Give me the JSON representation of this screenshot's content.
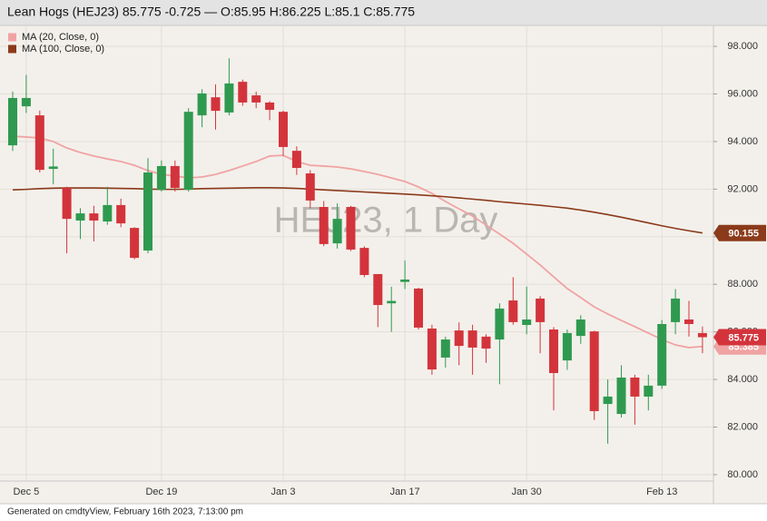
{
  "chart_data": {
    "type": "candlestick",
    "title": "Lean Hogs (HEJ23) 85.775 -0.725 — O:85.95 H:86.225 L:85.1 C:85.775",
    "watermark": "HEJ23, 1 Day",
    "footer": "Generated on cmdtyView, February 16th 2023, 7:13:00 pm",
    "categories": [
      null,
      "Dec 5",
      null,
      null,
      null,
      null,
      null,
      null,
      null,
      null,
      null,
      "Dec 19",
      null,
      null,
      null,
      null,
      null,
      null,
      null,
      null,
      "Jan 3",
      null,
      null,
      null,
      null,
      null,
      null,
      null,
      null,
      "Jan 17",
      null,
      null,
      null,
      null,
      null,
      null,
      null,
      null,
      "Jan 30",
      null,
      null,
      null,
      null,
      null,
      null,
      null,
      null,
      null,
      "Feb 13",
      null,
      null,
      null
    ],
    "open": [
      93.84,
      95.48,
      95.1,
      92.85,
      92.05,
      90.68,
      90.98,
      90.64,
      91.33,
      90.37,
      89.42,
      91.97,
      92.97,
      91.97,
      95.1,
      95.86,
      95.22,
      96.51,
      95.94,
      95.64,
      95.25,
      93.61,
      92.66,
      91.25,
      89.72,
      91.25,
      89.53,
      88.43,
      87.2,
      88.1,
      87.82,
      86.14,
      84.92,
      86.06,
      86.06,
      85.8,
      85.68,
      87.32,
      86.29,
      87.4,
      86.1,
      84.8,
      85.83,
      86.02,
      82.97,
      82.55,
      84.08,
      83.28,
      83.74,
      86.41,
      86.52,
      85.95
    ],
    "high": [
      96.1,
      96.8,
      95.3,
      93.7,
      92.1,
      91.2,
      91.3,
      92.1,
      91.6,
      90.4,
      93.3,
      93.2,
      93.2,
      95.4,
      96.2,
      96.4,
      97.5,
      96.6,
      96.1,
      95.7,
      95.3,
      93.8,
      92.8,
      91.5,
      91.4,
      91.3,
      89.6,
      88.4,
      87.9,
      89.0,
      87.85,
      86.3,
      85.8,
      86.4,
      86.3,
      85.9,
      87.2,
      88.3,
      87.9,
      87.5,
      86.2,
      86.1,
      86.7,
      86.05,
      84.0,
      84.6,
      84.2,
      84.2,
      86.5,
      87.8,
      87.3,
      86.225
    ],
    "low": [
      93.6,
      95.2,
      92.7,
      92.2,
      89.3,
      89.9,
      89.8,
      90.5,
      90.4,
      89.05,
      89.3,
      91.9,
      91.9,
      91.9,
      94.6,
      94.5,
      95.1,
      95.5,
      95.4,
      94.9,
      93.4,
      92.6,
      91.2,
      89.6,
      89.5,
      89.4,
      88.3,
      86.2,
      86.0,
      87.8,
      86.1,
      84.2,
      84.5,
      84.6,
      84.2,
      84.7,
      83.8,
      86.3,
      85.9,
      85.1,
      82.7,
      84.4,
      85.5,
      82.3,
      81.3,
      82.4,
      82.1,
      82.7,
      83.6,
      85.9,
      85.8,
      85.1
    ],
    "close": [
      95.83,
      95.83,
      92.81,
      92.95,
      90.75,
      90.98,
      90.68,
      91.33,
      90.56,
      89.11,
      92.7,
      92.97,
      92.05,
      95.25,
      96.02,
      95.29,
      96.44,
      95.64,
      95.64,
      95.33,
      93.77,
      92.89,
      91.52,
      89.69,
      90.75,
      89.46,
      88.39,
      87.13,
      87.3,
      88.2,
      86.18,
      84.42,
      85.68,
      85.41,
      85.34,
      85.3,
      86.98,
      86.41,
      86.52,
      86.41,
      84.27,
      85.95,
      86.52,
      82.67,
      83.28,
      84.08,
      83.28,
      83.74,
      86.33,
      87.4,
      86.33,
      85.775
    ],
    "up_color": "#2f9a4f",
    "down_color": "#d3343b",
    "series": [
      {
        "name": "MA (20, Close, 0)",
        "color": "#f0a3a3",
        "values": [
          94.22,
          94.19,
          94.15,
          94.0,
          93.73,
          93.54,
          93.39,
          93.27,
          93.16,
          93.0,
          92.78,
          92.62,
          92.55,
          92.47,
          92.51,
          92.62,
          92.78,
          92.97,
          93.16,
          93.39,
          93.42,
          93.16,
          93.0,
          92.97,
          92.93,
          92.85,
          92.74,
          92.62,
          92.47,
          92.32,
          92.09,
          91.82,
          91.48,
          91.17,
          90.87,
          90.49,
          90.11,
          89.72,
          89.27,
          88.81,
          88.31,
          87.82,
          87.44,
          87.05,
          86.75,
          86.48,
          86.22,
          85.95,
          85.68,
          85.45,
          85.34,
          85.385
        ]
      },
      {
        "name": "MA (100, Close, 0)",
        "color": "#8b3a1a",
        "values": [
          91.97,
          91.99,
          92.02,
          92.04,
          92.05,
          92.05,
          92.05,
          92.04,
          92.03,
          92.02,
          92.0,
          91.99,
          91.99,
          92.0,
          92.02,
          92.03,
          92.04,
          92.05,
          92.06,
          92.06,
          92.05,
          92.03,
          92.0,
          91.97,
          91.94,
          91.91,
          91.88,
          91.85,
          91.82,
          91.79,
          91.76,
          91.72,
          91.68,
          91.63,
          91.58,
          91.53,
          91.47,
          91.42,
          91.37,
          91.32,
          91.26,
          91.2,
          91.12,
          91.03,
          90.93,
          90.82,
          90.7,
          90.58,
          90.46,
          90.35,
          90.25,
          90.155
        ]
      }
    ],
    "ylim": [
      79.73,
      98.88
    ],
    "yticks": [
      {
        "value": 80,
        "label": "80.000"
      },
      {
        "value": 82,
        "label": "82.000"
      },
      {
        "value": 84,
        "label": "84.000"
      },
      {
        "value": 86,
        "label": "86.000"
      },
      {
        "value": 88,
        "label": "88.000"
      },
      {
        "value": 90,
        "label": "90.000"
      },
      {
        "value": 92,
        "label": "92.000"
      },
      {
        "value": 94,
        "label": "94.000"
      },
      {
        "value": 96,
        "label": "96.000"
      },
      {
        "value": 98,
        "label": "98.000"
      }
    ],
    "grid": true
  }
}
